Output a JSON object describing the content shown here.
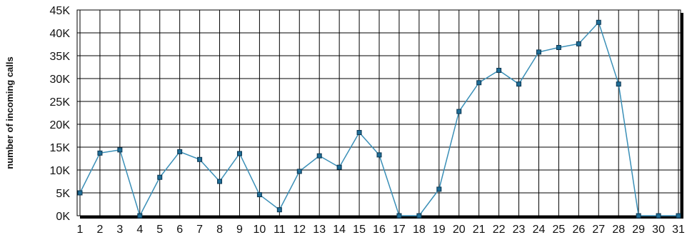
{
  "chart_data": {
    "type": "line",
    "title": "",
    "xlabel": "",
    "ylabel": "number of incoming calls",
    "x": [
      1,
      2,
      3,
      4,
      5,
      6,
      7,
      8,
      9,
      10,
      11,
      12,
      13,
      14,
      15,
      16,
      17,
      18,
      19,
      20,
      21,
      22,
      23,
      24,
      25,
      26,
      27,
      28,
      29,
      30,
      31
    ],
    "y_tick_values": [
      0,
      5000,
      10000,
      15000,
      20000,
      25000,
      30000,
      35000,
      40000,
      45000
    ],
    "y_tick_labels": [
      "0K",
      "5K",
      "10K",
      "15K",
      "20K",
      "25K",
      "30K",
      "35K",
      "40K",
      "45K"
    ],
    "ylim": [
      0,
      45000
    ],
    "grid": true,
    "series": [
      {
        "values": [
          5000,
          13700,
          14400,
          0,
          8400,
          14000,
          12300,
          7500,
          13600,
          4600,
          1300,
          9700,
          13100,
          10600,
          18200,
          13300,
          0,
          0,
          5800,
          22800,
          29100,
          31800,
          28800,
          35800,
          36800,
          37600,
          42300,
          28800,
          0,
          0,
          0
        ]
      }
    ],
    "colors": {
      "line": "#3a8fb7",
      "marker_fill": "#1f6d96",
      "marker_stroke": "#0b3550",
      "grid": "#000000",
      "axis_shadow": "#000000"
    }
  }
}
